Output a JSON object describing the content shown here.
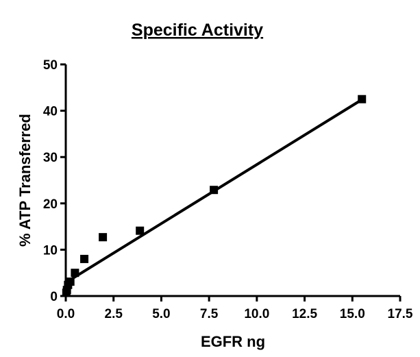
{
  "chart_data": {
    "type": "scatter",
    "title": "Specific Activity",
    "xlabel": "EGFR ng",
    "ylabel": "% ATP Transferred",
    "xlim": [
      0,
      17.5
    ],
    "ylim": [
      0,
      50
    ],
    "x_ticks": [
      0,
      2.5,
      5,
      7.5,
      10,
      12.5,
      15,
      17.5
    ],
    "x_tick_labels": [
      "0.0",
      "2.5",
      "5.0",
      "7.5",
      "10.0",
      "12.5",
      "15.0",
      "17.5"
    ],
    "y_ticks": [
      0,
      10,
      20,
      30,
      40,
      50
    ],
    "y_tick_labels": [
      "0",
      "10",
      "20",
      "30",
      "40",
      "50"
    ],
    "grid": false,
    "legend": "none",
    "marker": "square",
    "color": "#000000",
    "series": [
      {
        "x": [
          0.03,
          0.06,
          0.12,
          0.24,
          0.48,
          0.97,
          1.94,
          3.88,
          7.75,
          15.5
        ],
        "y": [
          0.7,
          1.3,
          2.4,
          3.1,
          5.0,
          8.0,
          12.7,
          14.1,
          22.9,
          42.5
        ]
      }
    ],
    "fit_line": {
      "x": [
        0,
        15.5
      ],
      "y": [
        2.9,
        42.4
      ]
    }
  }
}
